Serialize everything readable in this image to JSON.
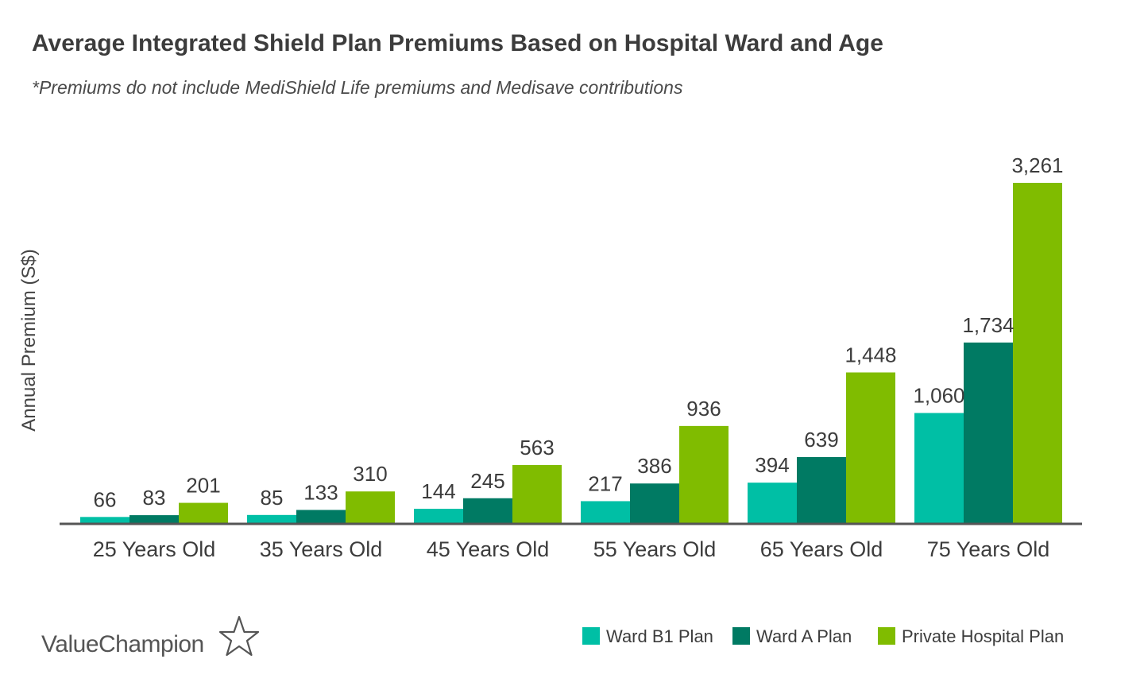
{
  "colors": {
    "series": [
      "#00bfa5",
      "#007a63",
      "#80bc00"
    ],
    "axis": "#555555",
    "text": "#3c3c3c",
    "brand": "#555555"
  },
  "brand": {
    "name": "ValueChampion",
    "icon": "star-outline-icon"
  },
  "chart_data": {
    "type": "bar",
    "title": "Average Integrated Shield Plan Premiums Based on Hospital Ward and Age",
    "subtitle": "*Premiums do not include MediShield Life premiums and Medisave contributions",
    "xlabel": "",
    "ylabel": "Annual Premium (S$)",
    "ylim": [
      0,
      3261
    ],
    "grid": false,
    "legend_position": "bottom-right",
    "categories": [
      "25 Years Old",
      "35 Years Old",
      "45 Years Old",
      "55 Years Old",
      "65 Years Old",
      "75 Years Old"
    ],
    "series": [
      {
        "name": "Ward B1 Plan",
        "values": [
          66,
          85,
          144,
          217,
          394,
          1060
        ]
      },
      {
        "name": "Ward A Plan",
        "values": [
          83,
          133,
          245,
          386,
          639,
          1734
        ]
      },
      {
        "name": "Private Hospital Plan",
        "values": [
          201,
          310,
          563,
          936,
          1448,
          3261
        ]
      }
    ]
  }
}
